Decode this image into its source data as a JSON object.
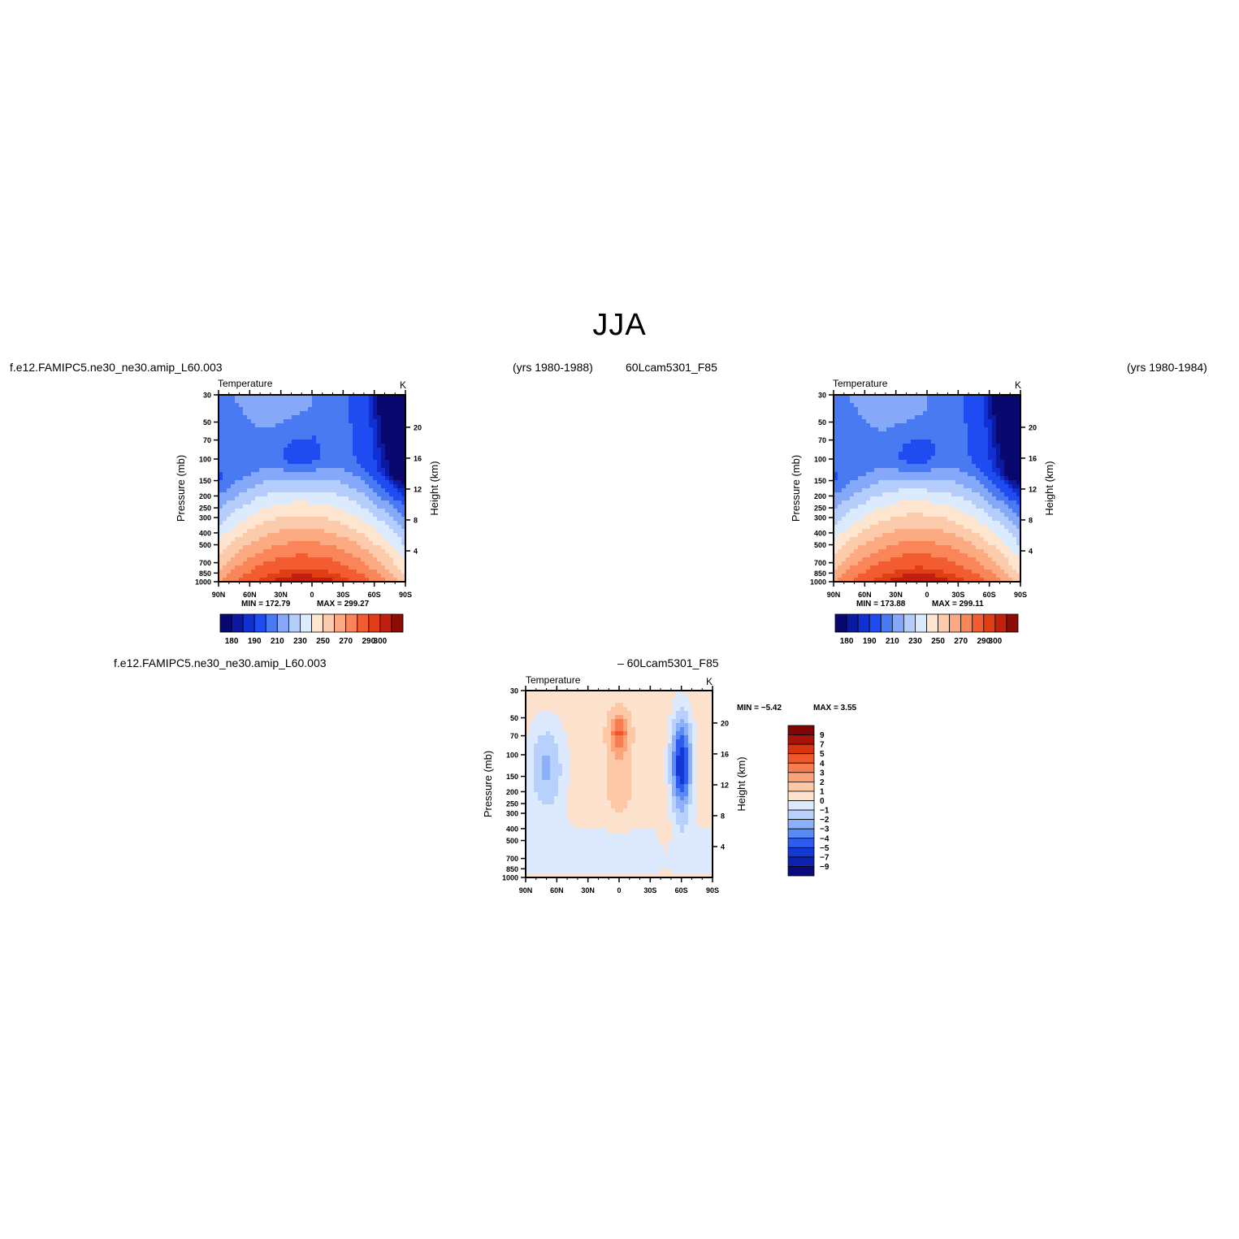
{
  "title": "JJA",
  "header": {
    "left_case": "f.e12.FAMIPC5.ne30_ne30.amip_L60.003",
    "left_years": "(yrs 1980-1988)",
    "right_case": "60Lcam5301_F85",
    "right_years": "(yrs 1980-1984)",
    "diff_left": "f.e12.FAMIPC5.ne30_ne30.amip_L60.003",
    "diff_right": "– 60Lcam5301_F85"
  },
  "colors": {
    "absolute_scale": [
      "#08086e",
      "#0b1aa0",
      "#1030d2",
      "#1e4cf0",
      "#4a7af2",
      "#85a8f8",
      "#b4cdfa",
      "#dceafe",
      "#fde5d0",
      "#fccbab",
      "#fcaa82",
      "#f98558",
      "#f35c30",
      "#e23e15",
      "#c0200d",
      "#8c0c08"
    ],
    "diff_scale": [
      "#0a0a7e",
      "#0e22b0",
      "#1438d6",
      "#2f5cf0",
      "#5a8af5",
      "#8cb0fa",
      "#b7d0fc",
      "#dde9fd",
      "#fde2cd",
      "#fcc8a5",
      "#fba47c",
      "#f77c50",
      "#ef5628",
      "#d6330e",
      "#a81208",
      "#800505"
    ]
  },
  "chart_data": [
    {
      "type": "heatmap",
      "panel": "model-case",
      "title": "Temperature",
      "units": "K",
      "xlabel": "",
      "ylabel": "Pressure (mb)",
      "y2label": "Height (km)",
      "x_ticks": [
        "90N",
        "60N",
        "30N",
        "0",
        "30S",
        "60S",
        "90S"
      ],
      "y_ticks": [
        30,
        50,
        70,
        100,
        150,
        200,
        250,
        300,
        400,
        500,
        700,
        850,
        1000
      ],
      "y2_ticks": [
        4,
        8,
        12,
        16,
        20
      ],
      "ylim": [
        1000,
        30
      ],
      "min_label": "MIN = 172.79",
      "max_label": "MAX = 299.27",
      "min": 172.79,
      "max": 299.27,
      "colorbar_labels": [
        "180",
        "190",
        "210",
        "230",
        "250",
        "270",
        "290",
        "300"
      ],
      "levels": [
        180,
        185,
        190,
        200,
        210,
        220,
        230,
        240,
        250,
        260,
        270,
        280,
        290,
        295,
        300
      ]
    },
    {
      "type": "heatmap",
      "panel": "control-case",
      "title": "Temperature",
      "units": "K",
      "xlabel": "",
      "ylabel": "Pressure (mb)",
      "y2label": "Height (km)",
      "x_ticks": [
        "90N",
        "60N",
        "30N",
        "0",
        "30S",
        "60S",
        "90S"
      ],
      "y_ticks": [
        30,
        50,
        70,
        100,
        150,
        200,
        250,
        300,
        400,
        500,
        700,
        850,
        1000
      ],
      "y2_ticks": [
        4,
        8,
        12,
        16,
        20
      ],
      "ylim": [
        1000,
        30
      ],
      "min_label": "MIN = 173.88",
      "max_label": "MAX = 299.11",
      "min": 173.88,
      "max": 299.11,
      "colorbar_labels": [
        "180",
        "190",
        "210",
        "230",
        "250",
        "270",
        "290",
        "300"
      ],
      "levels": [
        180,
        185,
        190,
        200,
        210,
        220,
        230,
        240,
        250,
        260,
        270,
        280,
        290,
        295,
        300
      ]
    },
    {
      "type": "heatmap",
      "panel": "difference",
      "title": "Temperature",
      "units": "K",
      "xlabel": "",
      "ylabel": "Pressure (mb)",
      "y2label": "Height (km)",
      "x_ticks": [
        "90N",
        "60N",
        "30N",
        "0",
        "30S",
        "60S",
        "90S"
      ],
      "y_ticks": [
        30,
        50,
        70,
        100,
        150,
        200,
        250,
        300,
        400,
        500,
        700,
        850,
        1000
      ],
      "y2_ticks": [
        4,
        8,
        12,
        16,
        20
      ],
      "ylim": [
        1000,
        30
      ],
      "min_label": "MIN = −5.42",
      "max_label": "MAX = 3.55",
      "min": -5.42,
      "max": 3.55,
      "colorbar_labels": [
        "9",
        "7",
        "5",
        "4",
        "3",
        "2",
        "1",
        "0",
        "−1",
        "−2",
        "−3",
        "−4",
        "−5",
        "−7",
        "−9"
      ],
      "levels": [
        -9,
        -7,
        -5,
        -4,
        -3,
        -2,
        -1,
        0,
        1,
        2,
        3,
        4,
        5,
        7,
        9
      ]
    }
  ]
}
